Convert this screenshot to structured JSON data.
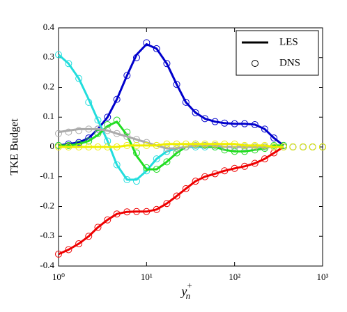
{
  "chart_data": {
    "type": "line",
    "ylabel": "TKE Budget",
    "xlabel": "y",
    "xlabel_sub": "n",
    "xlabel_sup": "+",
    "xscale": "log",
    "xlim": [
      1,
      1000
    ],
    "ylim": [
      -0.4,
      0.4
    ],
    "xticks": [
      {
        "value": 1,
        "label": "10⁰"
      },
      {
        "value": 10,
        "label": "10¹"
      },
      {
        "value": 100,
        "label": "10²"
      },
      {
        "value": 1000,
        "label": "10³"
      }
    ],
    "yticks": [
      -0.4,
      -0.3,
      -0.2,
      -0.1,
      0,
      0.1,
      0.2,
      0.3,
      0.4
    ],
    "legend": [
      {
        "label": "LES",
        "style": "line"
      },
      {
        "label": "DNS",
        "style": "marker"
      }
    ],
    "legend_position": "upper right",
    "x": [
      1,
      1.3,
      1.7,
      2.2,
      2.8,
      3.6,
      4.6,
      6,
      7.7,
      10,
      13,
      17,
      22,
      28,
      36,
      46,
      60,
      77,
      100,
      130,
      170,
      220,
      280,
      360,
      460,
      600,
      770,
      1000
    ],
    "series": [
      {
        "color": "#0000cc",
        "values": [
          0.005,
          0.01,
          0.015,
          0.03,
          0.06,
          0.1,
          0.16,
          0.24,
          0.31,
          0.345,
          0.33,
          0.28,
          0.21,
          0.15,
          0.115,
          0.095,
          0.085,
          0.08,
          0.078,
          0.078,
          0.075,
          0.06,
          0.03,
          0.005,
          null,
          null,
          null,
          null
        ],
        "dns_values": [
          0.005,
          0.01,
          0.015,
          0.03,
          0.06,
          0.1,
          0.16,
          0.24,
          0.3,
          0.35,
          0.33,
          0.28,
          0.21,
          0.15,
          0.115,
          0.095,
          0.085,
          0.08,
          0.078,
          0.078,
          0.075,
          0.06,
          0.03,
          0.005,
          0,
          0,
          0,
          0
        ]
      },
      {
        "color": "#ee0000",
        "values": [
          -0.36,
          -0.345,
          -0.325,
          -0.3,
          -0.27,
          -0.245,
          -0.225,
          -0.218,
          -0.217,
          -0.217,
          -0.21,
          -0.19,
          -0.165,
          -0.14,
          -0.115,
          -0.1,
          -0.09,
          -0.08,
          -0.072,
          -0.065,
          -0.055,
          -0.04,
          -0.02,
          0,
          null,
          null,
          null,
          null
        ],
        "dns_values": [
          -0.36,
          -0.345,
          -0.325,
          -0.3,
          -0.27,
          -0.245,
          -0.225,
          -0.218,
          -0.217,
          -0.217,
          -0.21,
          -0.19,
          -0.165,
          -0.14,
          -0.115,
          -0.1,
          -0.09,
          -0.08,
          -0.072,
          -0.065,
          -0.055,
          -0.04,
          -0.02,
          0,
          0,
          0,
          0,
          0
        ]
      },
      {
        "color": "#22dddd",
        "values": [
          0.31,
          0.28,
          0.23,
          0.16,
          0.09,
          0.02,
          -0.06,
          -0.11,
          -0.11,
          -0.08,
          -0.04,
          -0.015,
          -0.005,
          0,
          0,
          0,
          0,
          0,
          0,
          0,
          0,
          0,
          0,
          0,
          null,
          null,
          null,
          null
        ],
        "dns_values": [
          0.31,
          0.28,
          0.23,
          0.15,
          0.09,
          0.02,
          -0.06,
          -0.11,
          -0.115,
          -0.08,
          -0.04,
          -0.015,
          -0.005,
          0,
          0,
          0,
          0,
          0,
          0,
          0,
          0,
          0,
          0,
          0,
          0,
          0,
          0,
          0
        ]
      },
      {
        "color": "#22dd22",
        "values": [
          0.005,
          0.005,
          0.01,
          0.02,
          0.04,
          0.07,
          0.085,
          0.04,
          -0.03,
          -0.075,
          -0.075,
          -0.05,
          -0.02,
          0,
          0.005,
          0,
          0,
          -0.01,
          -0.015,
          -0.015,
          -0.01,
          -0.005,
          0.005,
          0.005,
          null,
          null,
          null,
          null
        ],
        "dns_values": [
          0.005,
          0.005,
          0.01,
          0.02,
          0.045,
          0.075,
          0.09,
          0.05,
          -0.02,
          -0.07,
          -0.075,
          -0.05,
          -0.02,
          0,
          0.01,
          0.005,
          0,
          -0.01,
          -0.015,
          -0.015,
          -0.01,
          -0.005,
          0.005,
          0.005,
          0,
          0,
          0,
          0
        ]
      },
      {
        "color": "#aaaaaa",
        "values": [
          0.05,
          0.055,
          0.06,
          0.06,
          0.06,
          0.055,
          0.045,
          0.035,
          0.025,
          0.015,
          0.005,
          -0.005,
          -0.005,
          0,
          0.005,
          0.005,
          0.005,
          0,
          0,
          0,
          0,
          0,
          0,
          0,
          null,
          null,
          null,
          null
        ],
        "dns_values": [
          0.045,
          0.05,
          0.055,
          0.06,
          0.06,
          0.055,
          0.045,
          0.035,
          0.025,
          0.015,
          0.005,
          -0.005,
          -0.005,
          0,
          0.005,
          0.005,
          0.005,
          0,
          0,
          0,
          0,
          0,
          0,
          0,
          0,
          0,
          0,
          0
        ]
      },
      {
        "color": "#eeee00",
        "values": [
          0,
          0,
          0,
          0,
          0,
          0,
          0,
          0.005,
          0.005,
          0.005,
          0.005,
          0.01,
          0.01,
          0.01,
          0.01,
          0.01,
          0.01,
          0.01,
          0.01,
          0.005,
          0.005,
          0.005,
          0,
          0,
          null,
          null,
          null,
          null
        ],
        "dns_values": [
          0,
          0,
          0,
          0,
          0,
          0,
          0,
          0.005,
          0.005,
          0.005,
          0.005,
          0.01,
          0.01,
          0.01,
          0.01,
          0.01,
          0.01,
          0.01,
          0.01,
          0.005,
          0.005,
          0.005,
          0,
          0,
          0,
          0,
          0,
          0
        ]
      }
    ]
  }
}
